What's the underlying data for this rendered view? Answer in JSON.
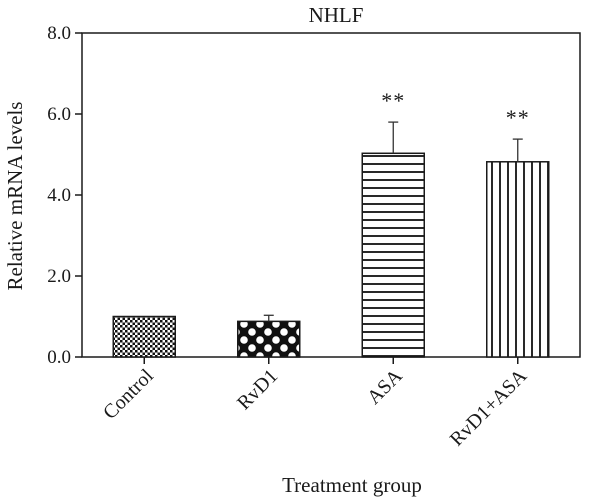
{
  "chart_data": {
    "type": "bar",
    "title": "NHLF",
    "xlabel": "Treatment group",
    "ylabel": "Relative mRNA levels",
    "ylim": [
      0,
      8
    ],
    "yticks": [
      "0.0",
      "2.0",
      "4.0",
      "6.0",
      "8.0"
    ],
    "categories": [
      "Control",
      "RvD1",
      "ASA",
      "RvD1+ASA"
    ],
    "values": [
      1.0,
      0.88,
      5.03,
      4.82
    ],
    "errors": [
      0.0,
      0.15,
      0.77,
      0.56
    ],
    "significance": [
      "",
      "",
      "**",
      "**"
    ],
    "bar_fills": [
      "checker-fine",
      "polka-dots",
      "horizontal-lines",
      "vertical-lines"
    ],
    "grid": false,
    "legend": "none"
  }
}
